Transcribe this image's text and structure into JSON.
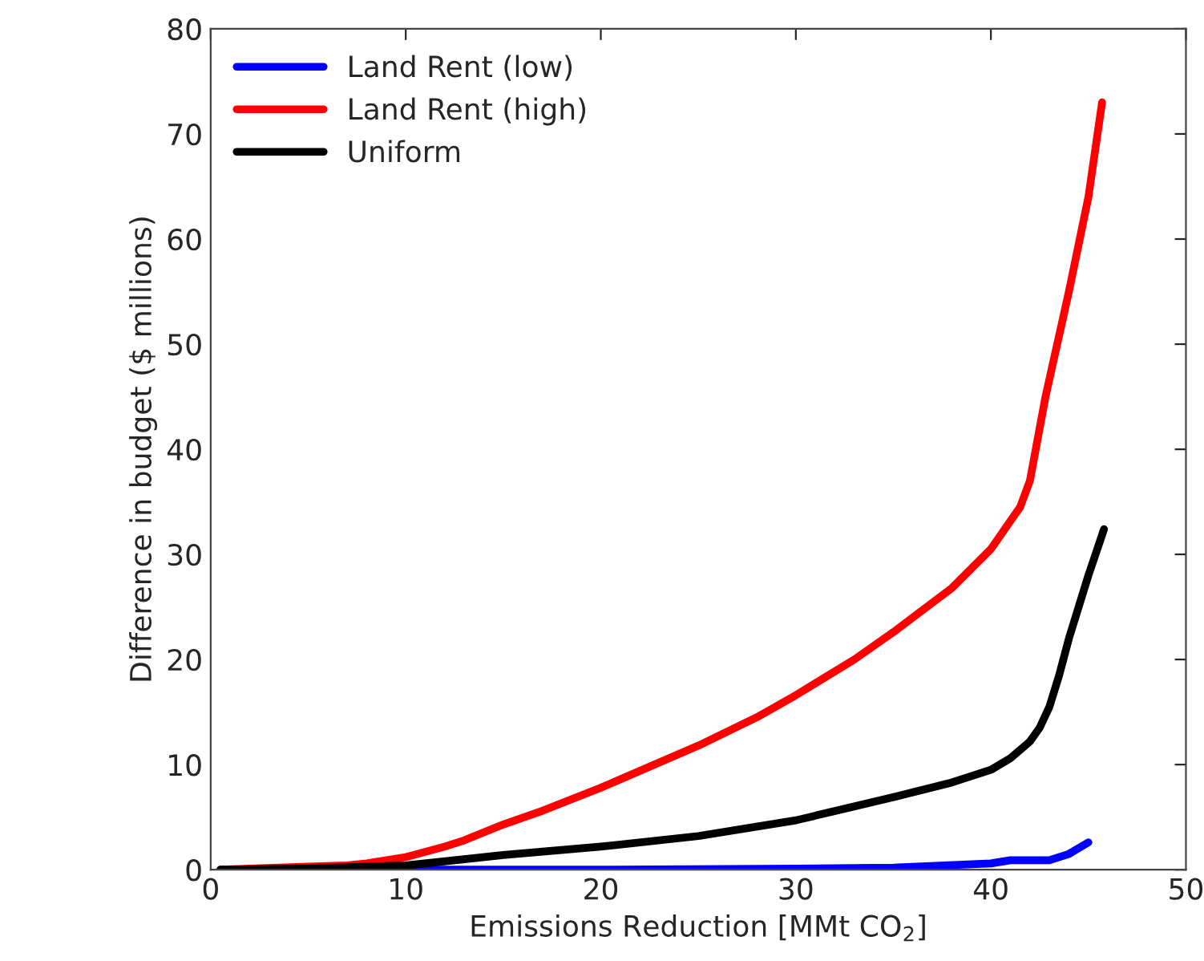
{
  "chart_data": {
    "type": "line",
    "xlabel": "Emissions Reduction [MMt CO$_{2}$]",
    "ylabel": "Difference in budget ($ millions)",
    "xlim": [
      0,
      50
    ],
    "xticks": [
      0,
      10,
      20,
      30,
      40,
      50
    ],
    "ylim": [
      0,
      80
    ],
    "yticks": [
      0,
      10,
      20,
      30,
      40,
      50,
      60,
      70,
      80
    ],
    "grid": false,
    "legend": "top left",
    "line_style": "solid",
    "marker": "none",
    "series": [
      {
        "name": "Land Rent (low)",
        "color": "#0000ff",
        "x": [
          0.5,
          10,
          20,
          30,
          35,
          40,
          41,
          43,
          44,
          45
        ],
        "values": [
          0,
          0,
          0,
          0.1,
          0.2,
          0.6,
          0.9,
          0.9,
          1.5,
          2.6
        ]
      },
      {
        "name": "Land Rent (high)",
        "color": "#ff0000",
        "x": [
          0.5,
          2,
          5,
          7,
          8,
          10,
          12,
          13,
          15,
          17,
          20,
          25,
          28,
          30,
          33,
          35,
          38,
          40,
          41.5,
          42,
          42.8,
          44,
          45,
          45.7
        ],
        "values": [
          0,
          0.1,
          0.3,
          0.4,
          0.6,
          1.2,
          2.2,
          2.8,
          4.3,
          5.6,
          7.8,
          11.8,
          14.5,
          16.6,
          20,
          22.6,
          26.8,
          30.5,
          34.5,
          37,
          45,
          55,
          64,
          73
        ]
      },
      {
        "name": "Uniform",
        "color": "#000000",
        "x": [
          0.5,
          5,
          10,
          13,
          15,
          20,
          25,
          30,
          35,
          38,
          40,
          41,
          42,
          42.5,
          43,
          43.5,
          44,
          45,
          45.8
        ],
        "values": [
          0,
          0.1,
          0.4,
          1,
          1.4,
          2.2,
          3.2,
          4.7,
          6.9,
          8.3,
          9.5,
          10.6,
          12.2,
          13.5,
          15.5,
          18.5,
          22,
          28,
          32.4
        ]
      }
    ]
  }
}
